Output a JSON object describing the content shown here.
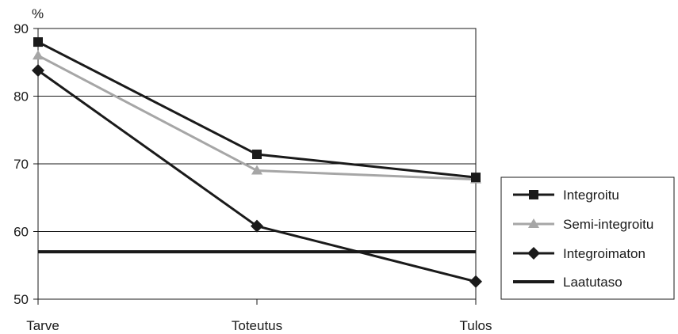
{
  "chart_data": {
    "type": "line",
    "categories": [
      "Tarve",
      "Toteutus",
      "Tulos"
    ],
    "ylabel": "%",
    "ylim": [
      50,
      90
    ],
    "yticks": [
      50,
      60,
      70,
      80,
      90
    ],
    "grid": true,
    "legend_position": "right",
    "series": [
      {
        "name": "Integroitu",
        "values": [
          88,
          71.4,
          68
        ],
        "color": "#1a1a1a",
        "marker": "square"
      },
      {
        "name": "Semi-integroitu",
        "values": [
          86,
          69,
          67.7
        ],
        "color": "#a6a6a6",
        "marker": "triangle"
      },
      {
        "name": "Integroimaton",
        "values": [
          83.8,
          60.8,
          52.6
        ],
        "color": "#1a1a1a",
        "marker": "diamond"
      },
      {
        "name": "Laatutaso",
        "values": [
          57,
          57,
          57
        ],
        "color": "#1a1a1a",
        "marker": "none"
      }
    ]
  }
}
